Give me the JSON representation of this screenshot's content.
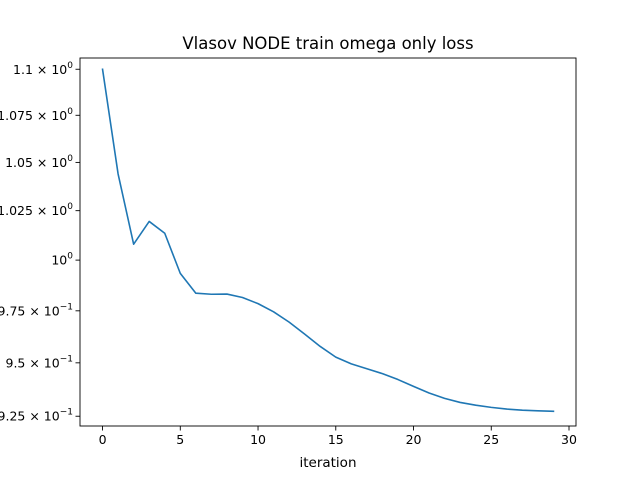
{
  "chart_data": {
    "type": "line",
    "title": "Vlasov NODE train omega only loss",
    "xlabel": "iteration",
    "ylabel": "",
    "yscale": "log",
    "grid": false,
    "legend": "none",
    "xlim": [
      -1.45,
      30.45
    ],
    "ylim": [
      0.9205,
      1.1062
    ],
    "x_ticks": [
      {
        "value": 0,
        "label": "0"
      },
      {
        "value": 5,
        "label": "5"
      },
      {
        "value": 10,
        "label": "10"
      },
      {
        "value": 15,
        "label": "15"
      },
      {
        "value": 20,
        "label": "20"
      },
      {
        "value": 25,
        "label": "25"
      },
      {
        "value": 30,
        "label": "30"
      }
    ],
    "y_ticks": [
      {
        "value": 0.925,
        "label": "9.25 × 10",
        "exp": "−1"
      },
      {
        "value": 0.95,
        "label": "9.5 × 10",
        "exp": "−1"
      },
      {
        "value": 0.975,
        "label": "9.75 × 10",
        "exp": "−1"
      },
      {
        "value": 1.0,
        "label": "10",
        "exp": "0"
      },
      {
        "value": 1.025,
        "label": "1.025 × 10",
        "exp": "0"
      },
      {
        "value": 1.05,
        "label": "1.05 × 10",
        "exp": "0"
      },
      {
        "value": 1.075,
        "label": "1.075 × 10",
        "exp": "0"
      },
      {
        "value": 1.1,
        "label": "1.1 × 10",
        "exp": "0"
      }
    ],
    "series": [
      {
        "color": "#1f77b4",
        "x": [
          0,
          1,
          2,
          3,
          4,
          5,
          6,
          7,
          8,
          9,
          10,
          11,
          12,
          13,
          14,
          15,
          16,
          17,
          18,
          19,
          20,
          21,
          22,
          23,
          24,
          25,
          26,
          27,
          28,
          29
        ],
        "values": [
          1.1,
          1.044,
          1.008,
          1.0195,
          1.0135,
          0.9934,
          0.9836,
          0.9831,
          0.9832,
          0.9815,
          0.9785,
          0.9745,
          0.9695,
          0.9637,
          0.9578,
          0.9527,
          0.9495,
          0.9472,
          0.9449,
          0.9421,
          0.9389,
          0.9358,
          0.9333,
          0.9314,
          0.9301,
          0.9291,
          0.9283,
          0.9278,
          0.9275,
          0.9273
        ]
      }
    ]
  }
}
